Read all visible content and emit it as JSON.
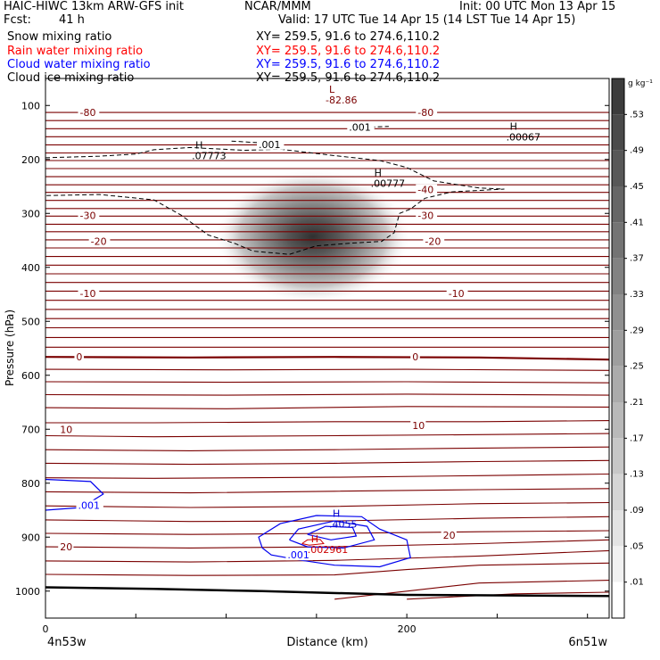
{
  "header": {
    "model": "HAIC-HIWC 13km ARW-GFS init",
    "org": "NCAR/MMM",
    "init": "Init: 00 UTC Mon 13 Apr 15",
    "fcst_label": "Fcst:",
    "fcst_value": "41 h",
    "valid": "Valid: 17 UTC Tue 14 Apr 15 (14 LST Tue 14 Apr 15)"
  },
  "fields": [
    {
      "name": "Snow mixing ratio",
      "xy": "XY= 259.5, 91.6 to 274.6,110.2",
      "color": "#000000"
    },
    {
      "name": "Rain water mixing ratio",
      "xy": "XY= 259.5, 91.6 to 274.6,110.2",
      "color": "#ff0000"
    },
    {
      "name": "Cloud water mixing ratio",
      "xy": "XY= 259.5, 91.6 to 274.6,110.2",
      "color": "#0000ff"
    },
    {
      "name": "Cloud ice mixing ratio",
      "xy": "XY= 259.5, 91.6 to 274.6,110.2",
      "color": "#000000"
    }
  ],
  "chart_data": {
    "type": "heatmap",
    "xlabel": "Distance (km)",
    "ylabel": "Pressure (hPa)",
    "x_ticks": [
      0,
      200
    ],
    "x_endpoints": [
      "4n53w",
      "6n51w"
    ],
    "xlim": [
      0,
      312
    ],
    "y_ticks": [
      100,
      200,
      300,
      400,
      500,
      600,
      700,
      800,
      900,
      1000
    ],
    "ylim": [
      50,
      1050
    ],
    "colorbar": {
      "unit": "g kg⁻¹",
      "levels": [
        ".53",
        ".49",
        ".45",
        ".41",
        ".37",
        ".33",
        ".29",
        ".25",
        ".21",
        ".17",
        ".13",
        ".09",
        ".05",
        ".01"
      ]
    },
    "snow_max": {
      "distance_km": 148,
      "pressure_hPa": 310,
      "value": 0.55
    },
    "temperature_labels": [
      {
        "text": "-80",
        "x": 19,
        "p": 113
      },
      {
        "text": "-80",
        "x": 206,
        "p": 113
      },
      {
        "text": "-40",
        "x": 206,
        "p": 256
      },
      {
        "text": "-30",
        "x": 19,
        "p": 304
      },
      {
        "text": "-30",
        "x": 206,
        "p": 304
      },
      {
        "text": "-20",
        "x": 25,
        "p": 352
      },
      {
        "text": "-20",
        "x": 210,
        "p": 352
      },
      {
        "text": "-10",
        "x": 19,
        "p": 448
      },
      {
        "text": "-10",
        "x": 223,
        "p": 448
      },
      {
        "text": "0",
        "x": 17,
        "p": 566
      },
      {
        "text": "0",
        "x": 203,
        "p": 566
      },
      {
        "text": "10",
        "x": 8,
        "p": 700
      },
      {
        "text": "10",
        "x": 203,
        "p": 693
      },
      {
        "text": "20",
        "x": 8,
        "p": 918
      },
      {
        "text": "20",
        "x": 220,
        "p": 896
      }
    ],
    "highs_lows": [
      {
        "mark": "L",
        "value": "-82.86",
        "x": 156,
        "p": 80
      },
      {
        "mark": "H",
        "value": ".00067",
        "x": 256,
        "p": 148
      },
      {
        "mark": "H",
        "value": ".07773",
        "x": 82,
        "p": 183
      },
      {
        "mark": "H",
        "value": ".00777",
        "x": 181,
        "p": 234
      },
      {
        "mark": "H",
        "value": ".4055",
        "x": 158,
        "p": 866
      },
      {
        "mark": "H",
        "value": ".002961",
        "x": 146,
        "p": 913
      }
    ],
    "contour_labels": [
      {
        "text": ".001",
        "x": 168,
        "p": 140,
        "color": "#000000"
      },
      {
        "text": ".001",
        "x": 118,
        "p": 172,
        "color": "#000000"
      },
      {
        "text": ".001",
        "x": 18,
        "p": 841,
        "color": "#0000ff"
      },
      {
        "text": ".001",
        "x": 134,
        "p": 933,
        "color": "#0000ff"
      }
    ]
  }
}
